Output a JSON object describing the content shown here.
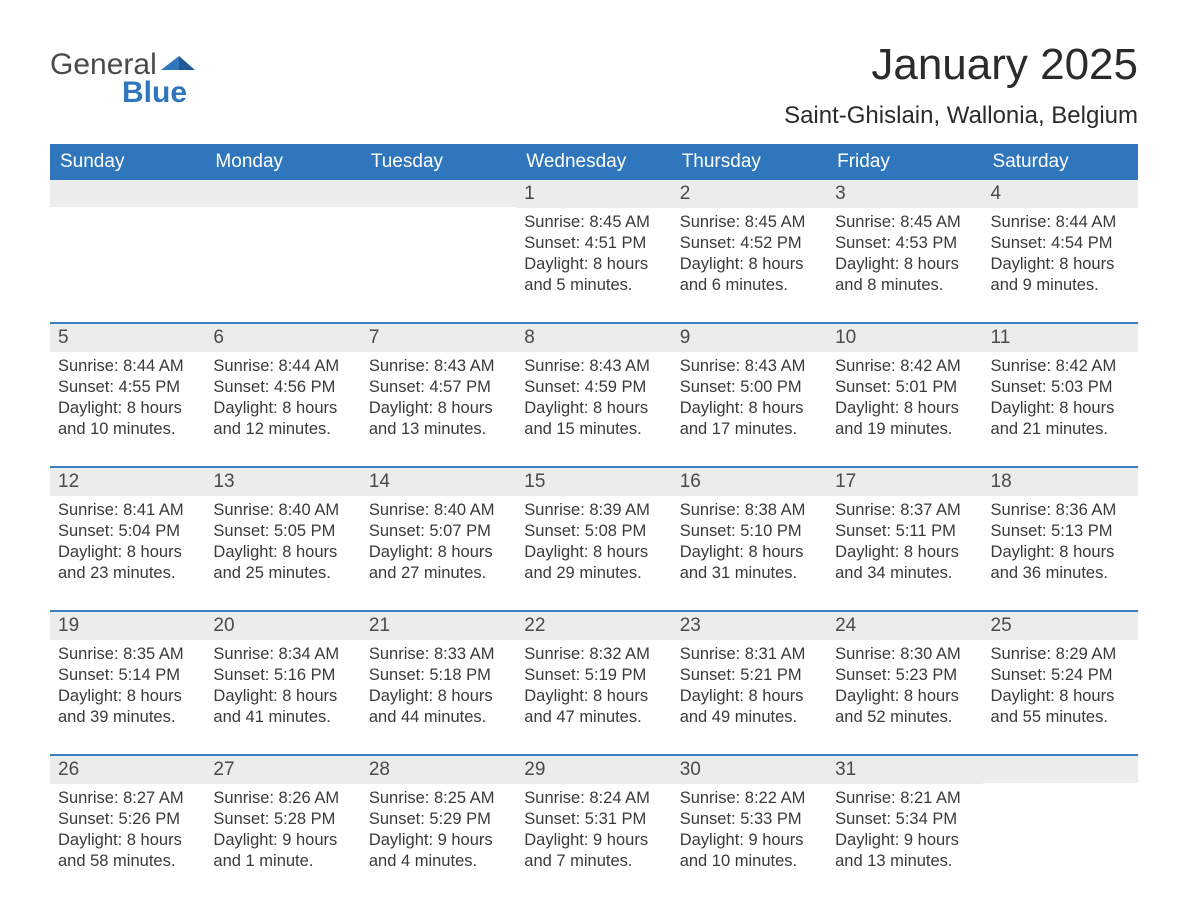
{
  "logo": {
    "text_a": "General",
    "text_b": "Blue",
    "blue_color": "#2f76bc"
  },
  "title": "January 2025",
  "location": "Saint-Ghislain, Wallonia, Belgium",
  "colors": {
    "header_bg": "#2f76bc",
    "header_text": "#ffffff",
    "daynum_bg": "#ececec",
    "week_border": "#3a7fbf",
    "text": "#3a3a3a"
  },
  "day_names": [
    "Sunday",
    "Monday",
    "Tuesday",
    "Wednesday",
    "Thursday",
    "Friday",
    "Saturday"
  ],
  "weeks": [
    [
      {
        "n": "",
        "lines": []
      },
      {
        "n": "",
        "lines": []
      },
      {
        "n": "",
        "lines": []
      },
      {
        "n": "1",
        "lines": [
          "Sunrise: 8:45 AM",
          "Sunset: 4:51 PM",
          "Daylight: 8 hours",
          "and 5 minutes."
        ]
      },
      {
        "n": "2",
        "lines": [
          "Sunrise: 8:45 AM",
          "Sunset: 4:52 PM",
          "Daylight: 8 hours",
          "and 6 minutes."
        ]
      },
      {
        "n": "3",
        "lines": [
          "Sunrise: 8:45 AM",
          "Sunset: 4:53 PM",
          "Daylight: 8 hours",
          "and 8 minutes."
        ]
      },
      {
        "n": "4",
        "lines": [
          "Sunrise: 8:44 AM",
          "Sunset: 4:54 PM",
          "Daylight: 8 hours",
          "and 9 minutes."
        ]
      }
    ],
    [
      {
        "n": "5",
        "lines": [
          "Sunrise: 8:44 AM",
          "Sunset: 4:55 PM",
          "Daylight: 8 hours",
          "and 10 minutes."
        ]
      },
      {
        "n": "6",
        "lines": [
          "Sunrise: 8:44 AM",
          "Sunset: 4:56 PM",
          "Daylight: 8 hours",
          "and 12 minutes."
        ]
      },
      {
        "n": "7",
        "lines": [
          "Sunrise: 8:43 AM",
          "Sunset: 4:57 PM",
          "Daylight: 8 hours",
          "and 13 minutes."
        ]
      },
      {
        "n": "8",
        "lines": [
          "Sunrise: 8:43 AM",
          "Sunset: 4:59 PM",
          "Daylight: 8 hours",
          "and 15 minutes."
        ]
      },
      {
        "n": "9",
        "lines": [
          "Sunrise: 8:43 AM",
          "Sunset: 5:00 PM",
          "Daylight: 8 hours",
          "and 17 minutes."
        ]
      },
      {
        "n": "10",
        "lines": [
          "Sunrise: 8:42 AM",
          "Sunset: 5:01 PM",
          "Daylight: 8 hours",
          "and 19 minutes."
        ]
      },
      {
        "n": "11",
        "lines": [
          "Sunrise: 8:42 AM",
          "Sunset: 5:03 PM",
          "Daylight: 8 hours",
          "and 21 minutes."
        ]
      }
    ],
    [
      {
        "n": "12",
        "lines": [
          "Sunrise: 8:41 AM",
          "Sunset: 5:04 PM",
          "Daylight: 8 hours",
          "and 23 minutes."
        ]
      },
      {
        "n": "13",
        "lines": [
          "Sunrise: 8:40 AM",
          "Sunset: 5:05 PM",
          "Daylight: 8 hours",
          "and 25 minutes."
        ]
      },
      {
        "n": "14",
        "lines": [
          "Sunrise: 8:40 AM",
          "Sunset: 5:07 PM",
          "Daylight: 8 hours",
          "and 27 minutes."
        ]
      },
      {
        "n": "15",
        "lines": [
          "Sunrise: 8:39 AM",
          "Sunset: 5:08 PM",
          "Daylight: 8 hours",
          "and 29 minutes."
        ]
      },
      {
        "n": "16",
        "lines": [
          "Sunrise: 8:38 AM",
          "Sunset: 5:10 PM",
          "Daylight: 8 hours",
          "and 31 minutes."
        ]
      },
      {
        "n": "17",
        "lines": [
          "Sunrise: 8:37 AM",
          "Sunset: 5:11 PM",
          "Daylight: 8 hours",
          "and 34 minutes."
        ]
      },
      {
        "n": "18",
        "lines": [
          "Sunrise: 8:36 AM",
          "Sunset: 5:13 PM",
          "Daylight: 8 hours",
          "and 36 minutes."
        ]
      }
    ],
    [
      {
        "n": "19",
        "lines": [
          "Sunrise: 8:35 AM",
          "Sunset: 5:14 PM",
          "Daylight: 8 hours",
          "and 39 minutes."
        ]
      },
      {
        "n": "20",
        "lines": [
          "Sunrise: 8:34 AM",
          "Sunset: 5:16 PM",
          "Daylight: 8 hours",
          "and 41 minutes."
        ]
      },
      {
        "n": "21",
        "lines": [
          "Sunrise: 8:33 AM",
          "Sunset: 5:18 PM",
          "Daylight: 8 hours",
          "and 44 minutes."
        ]
      },
      {
        "n": "22",
        "lines": [
          "Sunrise: 8:32 AM",
          "Sunset: 5:19 PM",
          "Daylight: 8 hours",
          "and 47 minutes."
        ]
      },
      {
        "n": "23",
        "lines": [
          "Sunrise: 8:31 AM",
          "Sunset: 5:21 PM",
          "Daylight: 8 hours",
          "and 49 minutes."
        ]
      },
      {
        "n": "24",
        "lines": [
          "Sunrise: 8:30 AM",
          "Sunset: 5:23 PM",
          "Daylight: 8 hours",
          "and 52 minutes."
        ]
      },
      {
        "n": "25",
        "lines": [
          "Sunrise: 8:29 AM",
          "Sunset: 5:24 PM",
          "Daylight: 8 hours",
          "and 55 minutes."
        ]
      }
    ],
    [
      {
        "n": "26",
        "lines": [
          "Sunrise: 8:27 AM",
          "Sunset: 5:26 PM",
          "Daylight: 8 hours",
          "and 58 minutes."
        ]
      },
      {
        "n": "27",
        "lines": [
          "Sunrise: 8:26 AM",
          "Sunset: 5:28 PM",
          "Daylight: 9 hours",
          "and 1 minute."
        ]
      },
      {
        "n": "28",
        "lines": [
          "Sunrise: 8:25 AM",
          "Sunset: 5:29 PM",
          "Daylight: 9 hours",
          "and 4 minutes."
        ]
      },
      {
        "n": "29",
        "lines": [
          "Sunrise: 8:24 AM",
          "Sunset: 5:31 PM",
          "Daylight: 9 hours",
          "and 7 minutes."
        ]
      },
      {
        "n": "30",
        "lines": [
          "Sunrise: 8:22 AM",
          "Sunset: 5:33 PM",
          "Daylight: 9 hours",
          "and 10 minutes."
        ]
      },
      {
        "n": "31",
        "lines": [
          "Sunrise: 8:21 AM",
          "Sunset: 5:34 PM",
          "Daylight: 9 hours",
          "and 13 minutes."
        ]
      },
      {
        "n": "",
        "lines": []
      }
    ]
  ]
}
